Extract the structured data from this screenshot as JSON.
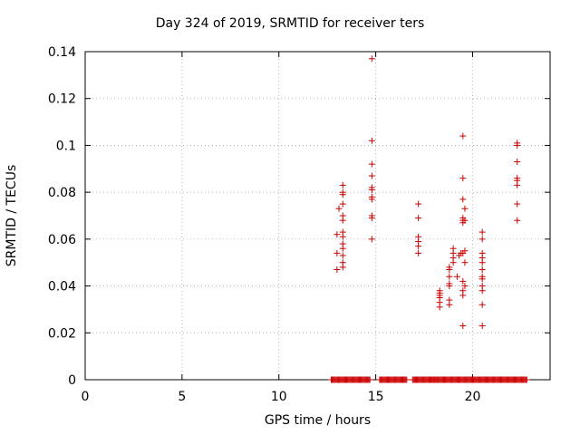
{
  "chart_data": {
    "type": "scatter",
    "title": "Day 324 of 2019, SRMTID for receiver ters",
    "xlabel": "GPS time / hours",
    "ylabel": "SRMTID / TECUs",
    "xlim": [
      0,
      24
    ],
    "ylim": [
      0,
      0.14
    ],
    "xticks": [
      0,
      5,
      10,
      15,
      20
    ],
    "yticks": [
      0,
      0.02,
      0.04,
      0.06,
      0.08,
      0.1,
      0.12,
      0.14
    ],
    "xtick_labels": [
      "0",
      "5",
      "10",
      "15",
      "20"
    ],
    "ytick_labels": [
      "0",
      "0.02",
      "0.04",
      "0.06",
      "0.08",
      "0.1",
      "0.12",
      "0.14"
    ],
    "grid": true,
    "marker": "plus",
    "color": "#cc0000",
    "points": [
      [
        13.0,
        0.047
      ],
      [
        13.0,
        0.054
      ],
      [
        13.0,
        0.062
      ],
      [
        13.1,
        0.073
      ],
      [
        13.3,
        0.048
      ],
      [
        13.3,
        0.05
      ],
      [
        13.3,
        0.053
      ],
      [
        13.3,
        0.056
      ],
      [
        13.3,
        0.058
      ],
      [
        13.3,
        0.061
      ],
      [
        13.3,
        0.063
      ],
      [
        13.3,
        0.068
      ],
      [
        13.3,
        0.07
      ],
      [
        13.3,
        0.075
      ],
      [
        13.3,
        0.079
      ],
      [
        13.3,
        0.08
      ],
      [
        13.3,
        0.083
      ],
      [
        14.8,
        0.137
      ],
      [
        14.8,
        0.102
      ],
      [
        14.8,
        0.092
      ],
      [
        14.8,
        0.087
      ],
      [
        14.8,
        0.082
      ],
      [
        14.8,
        0.081
      ],
      [
        14.8,
        0.078
      ],
      [
        14.8,
        0.077
      ],
      [
        14.8,
        0.07
      ],
      [
        14.8,
        0.069
      ],
      [
        14.8,
        0.06
      ],
      [
        17.2,
        0.075
      ],
      [
        17.2,
        0.069
      ],
      [
        17.2,
        0.061
      ],
      [
        17.2,
        0.059
      ],
      [
        17.2,
        0.057
      ],
      [
        17.2,
        0.054
      ],
      [
        18.3,
        0.031
      ],
      [
        18.3,
        0.033
      ],
      [
        18.3,
        0.035
      ],
      [
        18.3,
        0.036
      ],
      [
        18.3,
        0.037
      ],
      [
        18.3,
        0.038
      ],
      [
        18.8,
        0.032
      ],
      [
        18.8,
        0.034
      ],
      [
        18.8,
        0.04
      ],
      [
        18.8,
        0.041
      ],
      [
        18.8,
        0.044
      ],
      [
        18.8,
        0.047
      ],
      [
        18.8,
        0.048
      ],
      [
        19.0,
        0.05
      ],
      [
        19.0,
        0.052
      ],
      [
        19.0,
        0.054
      ],
      [
        19.0,
        0.056
      ],
      [
        19.2,
        0.044
      ],
      [
        19.3,
        0.053
      ],
      [
        19.4,
        0.054
      ],
      [
        19.5,
        0.104
      ],
      [
        19.5,
        0.086
      ],
      [
        19.5,
        0.077
      ],
      [
        19.5,
        0.069
      ],
      [
        19.5,
        0.068
      ],
      [
        19.5,
        0.067
      ],
      [
        19.5,
        0.054
      ],
      [
        19.5,
        0.042
      ],
      [
        19.5,
        0.038
      ],
      [
        19.5,
        0.036
      ],
      [
        19.5,
        0.023
      ],
      [
        19.6,
        0.073
      ],
      [
        19.6,
        0.068
      ],
      [
        19.6,
        0.055
      ],
      [
        19.6,
        0.05
      ],
      [
        19.6,
        0.04
      ],
      [
        20.5,
        0.063
      ],
      [
        20.5,
        0.06
      ],
      [
        20.5,
        0.054
      ],
      [
        20.5,
        0.052
      ],
      [
        20.5,
        0.05
      ],
      [
        20.5,
        0.047
      ],
      [
        20.5,
        0.044
      ],
      [
        20.5,
        0.043
      ],
      [
        20.5,
        0.04
      ],
      [
        20.5,
        0.038
      ],
      [
        20.5,
        0.032
      ],
      [
        20.5,
        0.023
      ],
      [
        22.3,
        0.101
      ],
      [
        22.3,
        0.1
      ],
      [
        22.3,
        0.093
      ],
      [
        22.3,
        0.086
      ],
      [
        22.3,
        0.085
      ],
      [
        22.3,
        0.083
      ],
      [
        22.3,
        0.075
      ],
      [
        22.3,
        0.068
      ]
    ],
    "zero_band_ranges": [
      [
        12.7,
        14.7
      ],
      [
        15.2,
        16.6
      ],
      [
        16.9,
        18.0
      ],
      [
        18.0,
        22.8
      ]
    ]
  }
}
